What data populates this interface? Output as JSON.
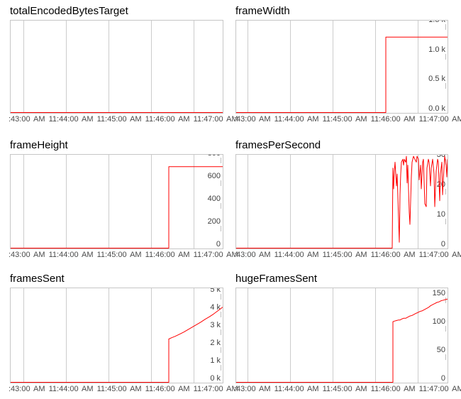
{
  "page": {
    "background": "#ffffff"
  },
  "colors": {
    "series_line": "#ff0000",
    "grid": "#cccccc",
    "plot_border": "#c6c6c6",
    "axis_text": "#404040",
    "title_text": "#000000"
  },
  "chart_data": [
    {
      "type": "line",
      "title": "totalEncodedBytesTarget",
      "legend": "none",
      "grid": true,
      "line_color": "#ff0000",
      "x_ticks": [
        ":43:00 AM",
        "11:44:00 AM",
        "11:45:00 AM",
        "11:46:00 AM",
        "11:47:00 AM"
      ],
      "x_tick_pos": [
        18,
        78,
        138,
        198,
        258
      ],
      "xlim": [
        0,
        299
      ],
      "ylim": [
        0,
        1
      ],
      "y_ticks": [],
      "points": [
        [
          0,
          0
        ],
        [
          299,
          0
        ]
      ]
    },
    {
      "type": "line",
      "title": "frameWidth",
      "legend": "none",
      "grid": true,
      "line_color": "#ff0000",
      "x_ticks": [
        ":43:00 AM",
        "11:44:00 AM",
        "11:45:00 AM",
        "11:46:00 AM",
        "11:47:00 AM"
      ],
      "x_tick_pos": [
        16,
        76,
        136,
        196,
        256
      ],
      "xlim": [
        0,
        298
      ],
      "ylim": [
        0,
        1560
      ],
      "y_ticks": [
        {
          "v": 1500,
          "label": "1.5 k"
        },
        {
          "v": 1000,
          "label": "1.0 k"
        },
        {
          "v": 500,
          "label": "0.5 k"
        },
        {
          "v": 0,
          "label": "0.0 k"
        }
      ],
      "points": [
        [
          0,
          0
        ],
        [
          211,
          0
        ],
        [
          211,
          1280
        ],
        [
          298,
          1280
        ]
      ]
    },
    {
      "type": "line",
      "title": "frameHeight",
      "legend": "none",
      "grid": true,
      "line_color": "#ff0000",
      "x_ticks": [
        ":43:00 AM",
        "11:44:00 AM",
        "11:45:00 AM",
        "11:46:00 AM",
        "11:47:00 AM"
      ],
      "x_tick_pos": [
        18,
        78,
        138,
        198,
        258
      ],
      "xlim": [
        0,
        299
      ],
      "ylim": [
        0,
        825
      ],
      "y_ticks": [
        {
          "v": 800,
          "label": "800"
        },
        {
          "v": 600,
          "label": "600"
        },
        {
          "v": 400,
          "label": "400"
        },
        {
          "v": 200,
          "label": "200"
        },
        {
          "v": 0,
          "label": "0"
        }
      ],
      "points": [
        [
          0,
          0
        ],
        [
          223,
          0
        ],
        [
          223,
          720
        ],
        [
          299,
          720
        ]
      ]
    },
    {
      "type": "line",
      "title": "framesPerSecond",
      "legend": "none",
      "grid": true,
      "line_color": "#ff0000",
      "x_ticks": [
        ":43:00 AM",
        "11:44:00 AM",
        "11:45:00 AM",
        "11:46:00 AM",
        "11:47:00 AM"
      ],
      "x_tick_pos": [
        16,
        76,
        136,
        196,
        256
      ],
      "xlim": [
        0,
        298
      ],
      "ylim": [
        0,
        31.5
      ],
      "y_ticks": [
        {
          "v": 30,
          "label": "30"
        },
        {
          "v": 20,
          "label": "20"
        },
        {
          "v": 10,
          "label": "10"
        },
        {
          "v": 0,
          "label": "0"
        }
      ],
      "points": [
        [
          0,
          0
        ],
        [
          220,
          0
        ],
        [
          221,
          27
        ],
        [
          222,
          20
        ],
        [
          223,
          26
        ],
        [
          224,
          29
        ],
        [
          226,
          21
        ],
        [
          227,
          25
        ],
        [
          228,
          17
        ],
        [
          230,
          2
        ],
        [
          231,
          18
        ],
        [
          232,
          25
        ],
        [
          233,
          29
        ],
        [
          235,
          30
        ],
        [
          236,
          28
        ],
        [
          237,
          30
        ],
        [
          239,
          29
        ],
        [
          240,
          31
        ],
        [
          241,
          22
        ],
        [
          242,
          28
        ],
        [
          244,
          12
        ],
        [
          245,
          8
        ],
        [
          247,
          24
        ],
        [
          248,
          29
        ],
        [
          250,
          31
        ],
        [
          252,
          30
        ],
        [
          254,
          29
        ],
        [
          255,
          31
        ],
        [
          257,
          30
        ],
        [
          258,
          23
        ],
        [
          260,
          28
        ],
        [
          261,
          20
        ],
        [
          263,
          29
        ],
        [
          264,
          30
        ],
        [
          266,
          15
        ],
        [
          268,
          14
        ],
        [
          269,
          27
        ],
        [
          271,
          30
        ],
        [
          272,
          29
        ],
        [
          274,
          21
        ],
        [
          275,
          27
        ],
        [
          277,
          30
        ],
        [
          279,
          25
        ],
        [
          280,
          14
        ],
        [
          282,
          26
        ],
        [
          284,
          30
        ],
        [
          285,
          29
        ],
        [
          287,
          16
        ],
        [
          288,
          25
        ],
        [
          290,
          29
        ],
        [
          291,
          18
        ],
        [
          293,
          27
        ],
        [
          294,
          31
        ],
        [
          296,
          28
        ],
        [
          297,
          24
        ],
        [
          298,
          30
        ]
      ]
    },
    {
      "type": "line",
      "title": "framesSent",
      "legend": "none",
      "grid": true,
      "line_color": "#ff0000",
      "x_ticks": [
        ":43:00 AM",
        "11:44:00 AM",
        "11:45:00 AM",
        "11:46:00 AM",
        "11:47:00 AM"
      ],
      "x_tick_pos": [
        18,
        78,
        138,
        198,
        258
      ],
      "xlim": [
        0,
        299
      ],
      "ylim": [
        0,
        5320
      ],
      "y_ticks": [
        {
          "v": 5000,
          "label": "5 k"
        },
        {
          "v": 4000,
          "label": "4 k"
        },
        {
          "v": 3000,
          "label": "3 k"
        },
        {
          "v": 2000,
          "label": "2 k"
        },
        {
          "v": 1000,
          "label": "1 k"
        },
        {
          "v": 0,
          "label": "0 k"
        }
      ],
      "points": [
        [
          0,
          0
        ],
        [
          223,
          0
        ],
        [
          223,
          2450
        ],
        [
          227,
          2520
        ],
        [
          232,
          2600
        ],
        [
          238,
          2720
        ],
        [
          244,
          2840
        ],
        [
          250,
          2980
        ],
        [
          256,
          3120
        ],
        [
          262,
          3260
        ],
        [
          268,
          3400
        ],
        [
          274,
          3560
        ],
        [
          280,
          3700
        ],
        [
          286,
          3860
        ],
        [
          292,
          4040
        ],
        [
          299,
          4250
        ]
      ]
    },
    {
      "type": "line",
      "title": "hugeFramesSent",
      "legend": "none",
      "grid": true,
      "line_color": "#ff0000",
      "x_ticks": [
        ":43:00 AM",
        "11:44:00 AM",
        "11:45:00 AM",
        "11:46:00 AM",
        "11:47:00 AM"
      ],
      "x_tick_pos": [
        16,
        76,
        136,
        196,
        256
      ],
      "xlim": [
        0,
        298
      ],
      "ylim": [
        0,
        166
      ],
      "y_ticks": [
        {
          "v": 150,
          "label": "150"
        },
        {
          "v": 100,
          "label": "100"
        },
        {
          "v": 50,
          "label": "50"
        },
        {
          "v": 0,
          "label": "0"
        }
      ],
      "points": [
        [
          0,
          0
        ],
        [
          221,
          0
        ],
        [
          221,
          107
        ],
        [
          223,
          108
        ],
        [
          226,
          109
        ],
        [
          229,
          110
        ],
        [
          231,
          110
        ],
        [
          234,
          112
        ],
        [
          236,
          113
        ],
        [
          239,
          113
        ],
        [
          242,
          115
        ],
        [
          245,
          117
        ],
        [
          248,
          118
        ],
        [
          251,
          120
        ],
        [
          254,
          122
        ],
        [
          256,
          123
        ],
        [
          259,
          125
        ],
        [
          262,
          126
        ],
        [
          265,
          128
        ],
        [
          268,
          130
        ],
        [
          271,
          132
        ],
        [
          274,
          135
        ],
        [
          277,
          137
        ],
        [
          280,
          139
        ],
        [
          283,
          141
        ],
        [
          286,
          142
        ],
        [
          289,
          144
        ],
        [
          292,
          145
        ],
        [
          295,
          146
        ],
        [
          298,
          147
        ]
      ]
    }
  ]
}
